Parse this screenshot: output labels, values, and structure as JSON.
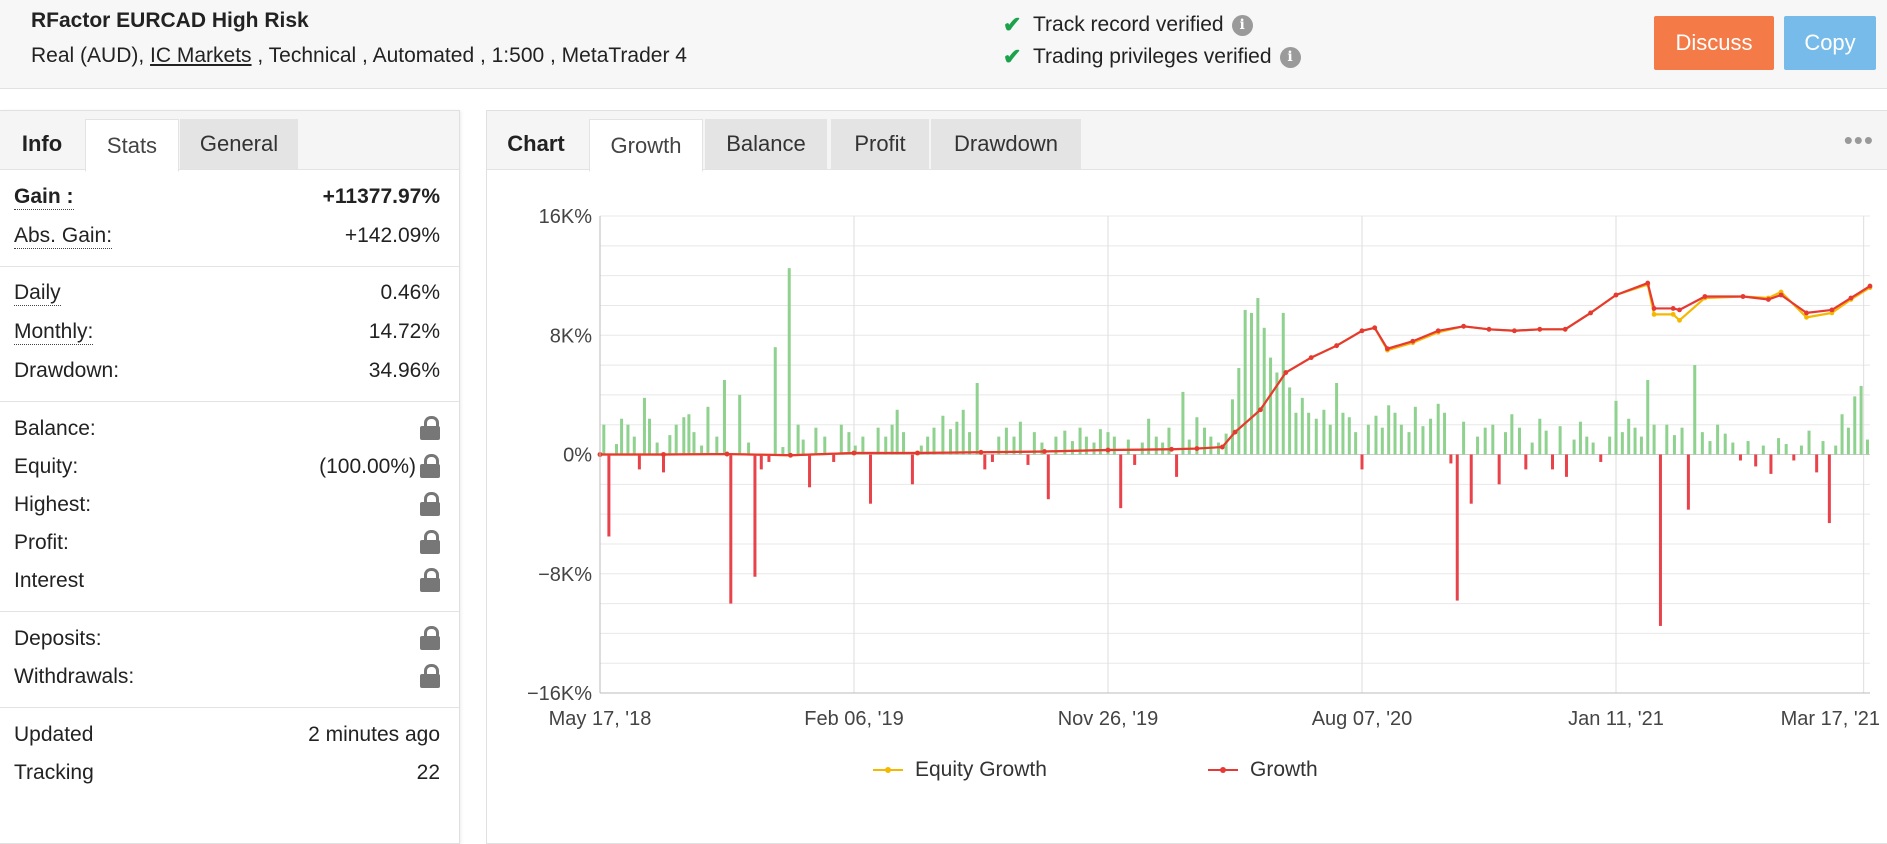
{
  "header": {
    "system_name": "RFactor EURCAD High Risk",
    "meta_prefix": "Real (AUD), ",
    "broker": "IC Markets",
    "meta_suffix": " , Technical , Automated , 1:500 , MetaTrader 4",
    "verify1": "Track record verified",
    "verify2": "Trading privileges verified",
    "discuss_label": "Discuss",
    "copy_label": "Copy"
  },
  "left": {
    "tabs": [
      "Info",
      "Stats",
      "General"
    ],
    "gain": {
      "label": "Gain :",
      "value": "+11377.97%"
    },
    "abs_gain": {
      "label": "Abs. Gain:",
      "value": "+142.09%"
    },
    "daily": {
      "label": "Daily",
      "value": "0.46%"
    },
    "monthly": {
      "label": "Monthly:",
      "value": "14.72%"
    },
    "drawdown": {
      "label": "Drawdown:",
      "value": "34.96%"
    },
    "balance": {
      "label": "Balance:"
    },
    "equity": {
      "label": "Equity:",
      "value": "(100.00%)"
    },
    "highest": {
      "label": "Highest:"
    },
    "profit": {
      "label": "Profit:"
    },
    "interest": {
      "label": "Interest"
    },
    "deposits": {
      "label": "Deposits:"
    },
    "withdrawals": {
      "label": "Withdrawals:"
    },
    "updated": {
      "label": "Updated",
      "value": "2 minutes ago"
    },
    "tracking": {
      "label": "Tracking",
      "value": "22"
    }
  },
  "right": {
    "tabs": [
      "Chart",
      "Growth",
      "Balance",
      "Profit",
      "Drawdown"
    ]
  },
  "chart_data": {
    "type": "line",
    "title": "",
    "xlabel": "",
    "ylabel": "",
    "ylim": [
      -16000,
      16000
    ],
    "yticks": [
      16000,
      8000,
      0,
      -8000,
      -16000
    ],
    "ytick_labels": [
      "16K%",
      "8K%",
      "0%",
      "−8K%",
      "−16K%"
    ],
    "xtick_labels": [
      "May 17, '18",
      "Feb 06, '19",
      "Nov 26, '19",
      "Aug 07, '20",
      "Jan 11, '21",
      "Mar 17, '21"
    ],
    "xtick_pos": [
      0,
      0.2,
      0.4,
      0.6,
      0.8,
      0.995
    ],
    "legend_position": "bottom-center",
    "colors": {
      "equity": "#f5b800",
      "growth": "#e53935",
      "bar_pos": "#8fd18f",
      "bar_neg": "#e8424a",
      "grid": "#e8e8e8"
    },
    "series": [
      {
        "name": "Equity Growth",
        "x": [
          0.0,
          0.05,
          0.1,
          0.15,
          0.2,
          0.25,
          0.3,
          0.35,
          0.4,
          0.45,
          0.47,
          0.49,
          0.5,
          0.52,
          0.54,
          0.56,
          0.58,
          0.6,
          0.61,
          0.62,
          0.64,
          0.66,
          0.68,
          0.7,
          0.72,
          0.74,
          0.76,
          0.78,
          0.8,
          0.825,
          0.83,
          0.845,
          0.85,
          0.87,
          0.9,
          0.92,
          0.93,
          0.95,
          0.97,
          0.985,
          1.0
        ],
        "y": [
          0,
          0,
          30,
          -50,
          100,
          100,
          150,
          200,
          300,
          350,
          400,
          500,
          1500,
          3000,
          5500,
          6500,
          7300,
          8300,
          8500,
          7000,
          7500,
          8200,
          8600,
          8400,
          8300,
          8400,
          8400,
          9500,
          10700,
          11400,
          9400,
          9400,
          9000,
          10500,
          10600,
          10500,
          10900,
          9200,
          9500,
          10400,
          11200
        ]
      },
      {
        "name": "Growth",
        "x": [
          0.0,
          0.05,
          0.1,
          0.15,
          0.2,
          0.25,
          0.3,
          0.35,
          0.4,
          0.45,
          0.47,
          0.49,
          0.5,
          0.52,
          0.54,
          0.56,
          0.58,
          0.6,
          0.61,
          0.62,
          0.64,
          0.66,
          0.68,
          0.7,
          0.72,
          0.74,
          0.76,
          0.78,
          0.8,
          0.825,
          0.83,
          0.845,
          0.85,
          0.87,
          0.9,
          0.92,
          0.93,
          0.95,
          0.97,
          0.985,
          1.0
        ],
        "y": [
          0,
          0,
          30,
          -50,
          100,
          100,
          150,
          200,
          300,
          350,
          400,
          500,
          1500,
          3000,
          5500,
          6500,
          7300,
          8300,
          8500,
          7100,
          7600,
          8300,
          8600,
          8400,
          8300,
          8400,
          8400,
          9500,
          10700,
          11500,
          9800,
          9800,
          9700,
          10600,
          10600,
          10400,
          10700,
          9500,
          9700,
          10500,
          11300
        ]
      }
    ],
    "bars": [
      {
        "x": 0.003,
        "y": 2000
      },
      {
        "x": 0.007,
        "y": -5500
      },
      {
        "x": 0.013,
        "y": 700
      },
      {
        "x": 0.017,
        "y": 2400
      },
      {
        "x": 0.022,
        "y": 2000
      },
      {
        "x": 0.027,
        "y": 1200
      },
      {
        "x": 0.031,
        "y": -1000
      },
      {
        "x": 0.035,
        "y": 3800
      },
      {
        "x": 0.039,
        "y": 2400
      },
      {
        "x": 0.045,
        "y": 800
      },
      {
        "x": 0.05,
        "y": -1200
      },
      {
        "x": 0.055,
        "y": 1300
      },
      {
        "x": 0.06,
        "y": 2000
      },
      {
        "x": 0.066,
        "y": 2500
      },
      {
        "x": 0.07,
        "y": 2700
      },
      {
        "x": 0.074,
        "y": 1500
      },
      {
        "x": 0.08,
        "y": 600
      },
      {
        "x": 0.085,
        "y": 3200
      },
      {
        "x": 0.092,
        "y": 1200
      },
      {
        "x": 0.098,
        "y": 5000
      },
      {
        "x": 0.103,
        "y": -10000
      },
      {
        "x": 0.11,
        "y": 4000
      },
      {
        "x": 0.117,
        "y": 800
      },
      {
        "x": 0.122,
        "y": -8200
      },
      {
        "x": 0.127,
        "y": -1000
      },
      {
        "x": 0.133,
        "y": -500
      },
      {
        "x": 0.138,
        "y": 7200
      },
      {
        "x": 0.144,
        "y": 500
      },
      {
        "x": 0.149,
        "y": 12500
      },
      {
        "x": 0.156,
        "y": 2000
      },
      {
        "x": 0.16,
        "y": 1000
      },
      {
        "x": 0.165,
        "y": -2200
      },
      {
        "x": 0.17,
        "y": 1800
      },
      {
        "x": 0.177,
        "y": 1200
      },
      {
        "x": 0.184,
        "y": -500
      },
      {
        "x": 0.19,
        "y": 2000
      },
      {
        "x": 0.196,
        "y": 1500
      },
      {
        "x": 0.201,
        "y": 600
      },
      {
        "x": 0.207,
        "y": 1200
      },
      {
        "x": 0.213,
        "y": -3300
      },
      {
        "x": 0.219,
        "y": 1800
      },
      {
        "x": 0.225,
        "y": 1200
      },
      {
        "x": 0.23,
        "y": 2000
      },
      {
        "x": 0.234,
        "y": 3000
      },
      {
        "x": 0.239,
        "y": 1500
      },
      {
        "x": 0.246,
        "y": -2000
      },
      {
        "x": 0.253,
        "y": 600
      },
      {
        "x": 0.258,
        "y": 1200
      },
      {
        "x": 0.263,
        "y": 1800
      },
      {
        "x": 0.27,
        "y": 2600
      },
      {
        "x": 0.276,
        "y": 1700
      },
      {
        "x": 0.281,
        "y": 2200
      },
      {
        "x": 0.286,
        "y": 3000
      },
      {
        "x": 0.291,
        "y": 1500
      },
      {
        "x": 0.297,
        "y": 4800
      },
      {
        "x": 0.303,
        "y": -1000
      },
      {
        "x": 0.309,
        "y": -500
      },
      {
        "x": 0.314,
        "y": 1200
      },
      {
        "x": 0.32,
        "y": 1800
      },
      {
        "x": 0.326,
        "y": 1200
      },
      {
        "x": 0.331,
        "y": 2200
      },
      {
        "x": 0.337,
        "y": -700
      },
      {
        "x": 0.342,
        "y": 1500
      },
      {
        "x": 0.348,
        "y": 800
      },
      {
        "x": 0.353,
        "y": -3000
      },
      {
        "x": 0.359,
        "y": 1200
      },
      {
        "x": 0.366,
        "y": 1600
      },
      {
        "x": 0.372,
        "y": 900
      },
      {
        "x": 0.378,
        "y": 1800
      },
      {
        "x": 0.383,
        "y": 1200
      },
      {
        "x": 0.389,
        "y": 800
      },
      {
        "x": 0.394,
        "y": 1700
      },
      {
        "x": 0.4,
        "y": 1500
      },
      {
        "x": 0.405,
        "y": 1200
      },
      {
        "x": 0.41,
        "y": -3600
      },
      {
        "x": 0.416,
        "y": 1000
      },
      {
        "x": 0.421,
        "y": -700
      },
      {
        "x": 0.427,
        "y": 800
      },
      {
        "x": 0.432,
        "y": 2400
      },
      {
        "x": 0.438,
        "y": 1200
      },
      {
        "x": 0.443,
        "y": 800
      },
      {
        "x": 0.448,
        "y": 1800
      },
      {
        "x": 0.454,
        "y": -1500
      },
      {
        "x": 0.459,
        "y": 4200
      },
      {
        "x": 0.464,
        "y": 1000
      },
      {
        "x": 0.47,
        "y": 2500
      },
      {
        "x": 0.476,
        "y": 1800
      },
      {
        "x": 0.481,
        "y": 1200
      },
      {
        "x": 0.487,
        "y": 800
      },
      {
        "x": 0.493,
        "y": 1400
      },
      {
        "x": 0.498,
        "y": 3700
      },
      {
        "x": 0.503,
        "y": 5800
      },
      {
        "x": 0.508,
        "y": 9700
      },
      {
        "x": 0.513,
        "y": 9500
      },
      {
        "x": 0.518,
        "y": 10500
      },
      {
        "x": 0.523,
        "y": 8500
      },
      {
        "x": 0.528,
        "y": 6500
      },
      {
        "x": 0.533,
        "y": 5500
      },
      {
        "x": 0.538,
        "y": 9500
      },
      {
        "x": 0.543,
        "y": 4500
      },
      {
        "x": 0.548,
        "y": 2800
      },
      {
        "x": 0.553,
        "y": 3800
      },
      {
        "x": 0.558,
        "y": 2800
      },
      {
        "x": 0.564,
        "y": 2400
      },
      {
        "x": 0.57,
        "y": 3000
      },
      {
        "x": 0.575,
        "y": 2000
      },
      {
        "x": 0.58,
        "y": 4800
      },
      {
        "x": 0.585,
        "y": 2800
      },
      {
        "x": 0.59,
        "y": 2500
      },
      {
        "x": 0.595,
        "y": 1500
      },
      {
        "x": 0.6,
        "y": -1000
      },
      {
        "x": 0.605,
        "y": 2000
      },
      {
        "x": 0.611,
        "y": 2600
      },
      {
        "x": 0.616,
        "y": 1800
      },
      {
        "x": 0.621,
        "y": 3300
      },
      {
        "x": 0.626,
        "y": 2800
      },
      {
        "x": 0.631,
        "y": 2000
      },
      {
        "x": 0.637,
        "y": 1500
      },
      {
        "x": 0.642,
        "y": 3200
      },
      {
        "x": 0.648,
        "y": 1900
      },
      {
        "x": 0.654,
        "y": 2400
      },
      {
        "x": 0.66,
        "y": 3400
      },
      {
        "x": 0.665,
        "y": 2800
      },
      {
        "x": 0.67,
        "y": -600
      },
      {
        "x": 0.675,
        "y": -9800
      },
      {
        "x": 0.68,
        "y": 2200
      },
      {
        "x": 0.686,
        "y": -3300
      },
      {
        "x": 0.691,
        "y": 1200
      },
      {
        "x": 0.697,
        "y": 1800
      },
      {
        "x": 0.703,
        "y": 2000
      },
      {
        "x": 0.708,
        "y": -2000
      },
      {
        "x": 0.713,
        "y": 1500
      },
      {
        "x": 0.718,
        "y": 2700
      },
      {
        "x": 0.724,
        "y": 1800
      },
      {
        "x": 0.729,
        "y": -1000
      },
      {
        "x": 0.734,
        "y": 800
      },
      {
        "x": 0.74,
        "y": 2400
      },
      {
        "x": 0.745,
        "y": 1600
      },
      {
        "x": 0.75,
        "y": -1000
      },
      {
        "x": 0.756,
        "y": 1900
      },
      {
        "x": 0.761,
        "y": -1500
      },
      {
        "x": 0.767,
        "y": 1000
      },
      {
        "x": 0.772,
        "y": 2200
      },
      {
        "x": 0.777,
        "y": 1200
      },
      {
        "x": 0.782,
        "y": 800
      },
      {
        "x": 0.788,
        "y": -500
      },
      {
        "x": 0.795,
        "y": 1200
      },
      {
        "x": 0.8,
        "y": 3600
      },
      {
        "x": 0.805,
        "y": 1500
      },
      {
        "x": 0.81,
        "y": 2400
      },
      {
        "x": 0.815,
        "y": 1800
      },
      {
        "x": 0.82,
        "y": 1200
      },
      {
        "x": 0.825,
        "y": 5000
      },
      {
        "x": 0.83,
        "y": 2000
      },
      {
        "x": 0.835,
        "y": -11500
      },
      {
        "x": 0.84,
        "y": 2000
      },
      {
        "x": 0.846,
        "y": 1300
      },
      {
        "x": 0.852,
        "y": 1800
      },
      {
        "x": 0.857,
        "y": -3700
      },
      {
        "x": 0.862,
        "y": 6000
      },
      {
        "x": 0.868,
        "y": 1500
      },
      {
        "x": 0.874,
        "y": 900
      },
      {
        "x": 0.88,
        "y": 2000
      },
      {
        "x": 0.886,
        "y": 1400
      },
      {
        "x": 0.892,
        "y": 800
      },
      {
        "x": 0.898,
        "y": -400
      },
      {
        "x": 0.904,
        "y": 900
      },
      {
        "x": 0.91,
        "y": -800
      },
      {
        "x": 0.916,
        "y": 600
      },
      {
        "x": 0.922,
        "y": -1300
      },
      {
        "x": 0.928,
        "y": 1100
      },
      {
        "x": 0.934,
        "y": 700
      },
      {
        "x": 0.94,
        "y": -400
      },
      {
        "x": 0.946,
        "y": 600
      },
      {
        "x": 0.952,
        "y": 1600
      },
      {
        "x": 0.958,
        "y": -1200
      },
      {
        "x": 0.963,
        "y": 900
      },
      {
        "x": 0.968,
        "y": -4600
      },
      {
        "x": 0.973,
        "y": 600
      },
      {
        "x": 0.978,
        "y": 2700
      },
      {
        "x": 0.983,
        "y": 1800
      },
      {
        "x": 0.988,
        "y": 3900
      },
      {
        "x": 0.993,
        "y": 4600
      },
      {
        "x": 0.998,
        "y": 1000
      }
    ]
  }
}
